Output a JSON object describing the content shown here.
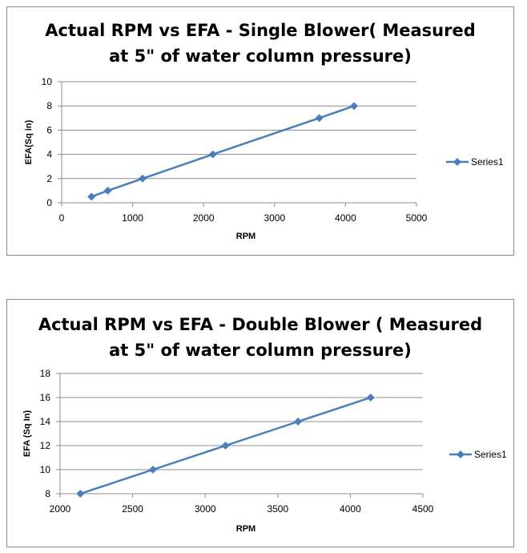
{
  "chart_data": [
    {
      "type": "line",
      "title_lines": [
        "Actual RPM vs EFA - Single Blower( Measured",
        "at 5\" of water column pressure)"
      ],
      "xlabel": "RPM",
      "ylabel": "EFA(Sq in)",
      "xlim": [
        0,
        5000
      ],
      "ylim": [
        0,
        10
      ],
      "xticks": [
        0,
        1000,
        2000,
        3000,
        4000,
        5000
      ],
      "yticks": [
        0,
        2,
        4,
        6,
        8,
        10
      ],
      "grid": true,
      "legend": "right",
      "color": "#4a7ebb",
      "series": [
        {
          "name": "Series1",
          "x": [
            420,
            650,
            1140,
            2130,
            3630,
            4120
          ],
          "y": [
            0.5,
            1,
            2,
            4,
            7,
            8
          ]
        }
      ]
    },
    {
      "type": "line",
      "title_lines": [
        "Actual RPM vs EFA - Double Blower ( Measured",
        "at 5\" of water column pressure)"
      ],
      "xlabel": "RPM",
      "ylabel": "EFA (Sq In)",
      "xlim": [
        2000,
        4500
      ],
      "ylim": [
        8,
        18
      ],
      "xticks": [
        2000,
        2500,
        3000,
        3500,
        4000,
        4500
      ],
      "yticks": [
        8,
        10,
        12,
        14,
        16,
        18
      ],
      "grid": true,
      "legend": "right",
      "color": "#4a7ebb",
      "series": [
        {
          "name": "Series1",
          "x": [
            2140,
            2640,
            3140,
            3640,
            4140
          ],
          "y": [
            8,
            10,
            12,
            14,
            16
          ]
        }
      ]
    }
  ]
}
